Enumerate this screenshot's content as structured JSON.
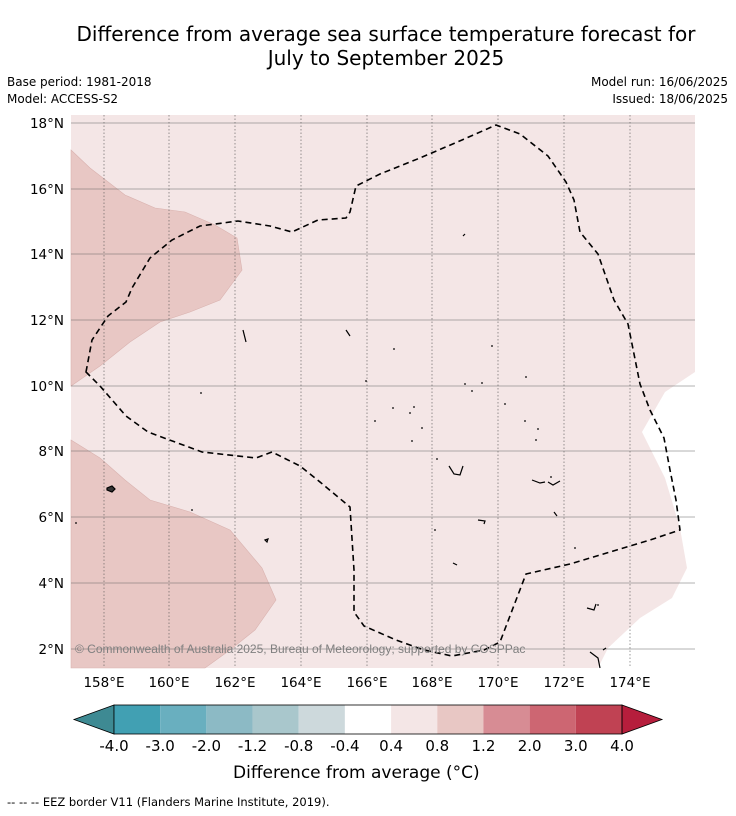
{
  "title_line1": "Difference from average sea surface temperature forecast for",
  "title_line2": "July to September 2025",
  "base_period": "Base period: 1981-2018",
  "model": "Model: ACCESS-S2",
  "model_run": "Model run: 16/06/2025",
  "issued": "Issued: 18/06/2025",
  "copyright": "© Commonwealth of Australia 2025, Bureau of Meteorology; supported by COSPPac",
  "colorbar_title": "Difference from average (°C)",
  "footer": "--  --  -- EEZ border V11 (Flanders Marine Institute, 2019).",
  "lon_ticks": [
    "158°E",
    "160°E",
    "162°E",
    "164°E",
    "166°E",
    "168°E",
    "170°E",
    "172°E",
    "174°E"
  ],
  "lat_ticks": [
    "18°N",
    "16°N",
    "14°N",
    "12°N",
    "10°N",
    "8°N",
    "6°N",
    "4°N",
    "2°N"
  ],
  "colorbar": {
    "ticks": [
      "-4.0",
      "-3.0",
      "-2.0",
      "-1.2",
      "-0.8",
      "-0.4",
      "0.4",
      "0.8",
      "1.2",
      "2.0",
      "3.0",
      "4.0"
    ],
    "colors": [
      "#41a0b3",
      "#69afbf",
      "#8cbac5",
      "#a9c7cc",
      "#cdd9dc",
      "#ffffff",
      "#f4e6e6",
      "#e8c7c4",
      "#d78c94",
      "#cd6672",
      "#c04253"
    ],
    "under_color": "#3e8a93",
    "over_color": "#b61e3c"
  },
  "map_colors": {
    "background_anomaly": "#f4e6e6",
    "warm_patch": "#e8c7c4"
  }
}
